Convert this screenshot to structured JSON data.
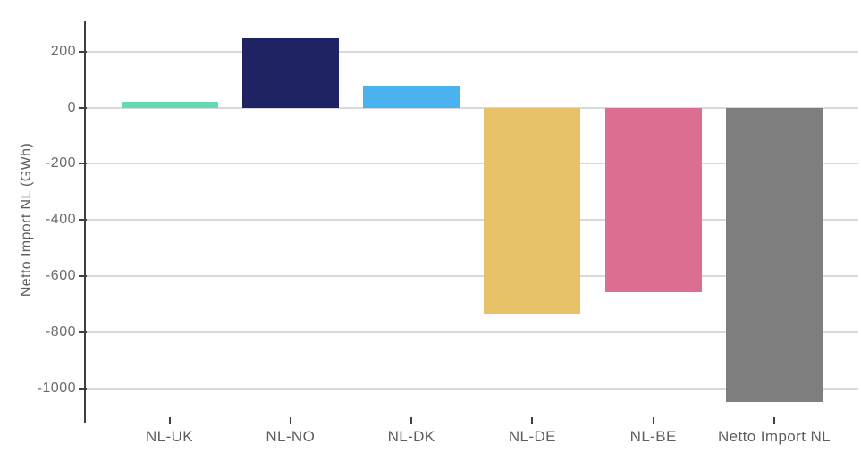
{
  "chart_data": {
    "type": "bar",
    "title": "",
    "categories": [
      "NL-UK",
      "NL-NO",
      "NL-DK",
      "NL-DE",
      "NL-BE",
      "Netto Import NL"
    ],
    "values": [
      22,
      246,
      78,
      -738,
      -658,
      -1050
    ],
    "bar_colors": [
      "#66d9b2",
      "#1f2363",
      "#4bb2f0",
      "#e8c268",
      "#dc6f8f",
      "#7e7e7e"
    ],
    "xlabel": "",
    "ylabel": "Netto Import NL (GWh)",
    "yticks": [
      200,
      0,
      -200,
      -400,
      -600,
      -800,
      -1000
    ],
    "ytick_labels": [
      "200",
      "0",
      "-200",
      "-400",
      "-600",
      "-800",
      "-1000"
    ],
    "ylim": [
      -1122,
      311
    ],
    "grid": true,
    "legend_position": "none",
    "colors": {
      "background": "#ffffff",
      "axis": "#3f3f3f",
      "gridline": "#d9d9d9",
      "tick_text": "#6b6b6b",
      "label_text": "#5e5e5e"
    }
  }
}
